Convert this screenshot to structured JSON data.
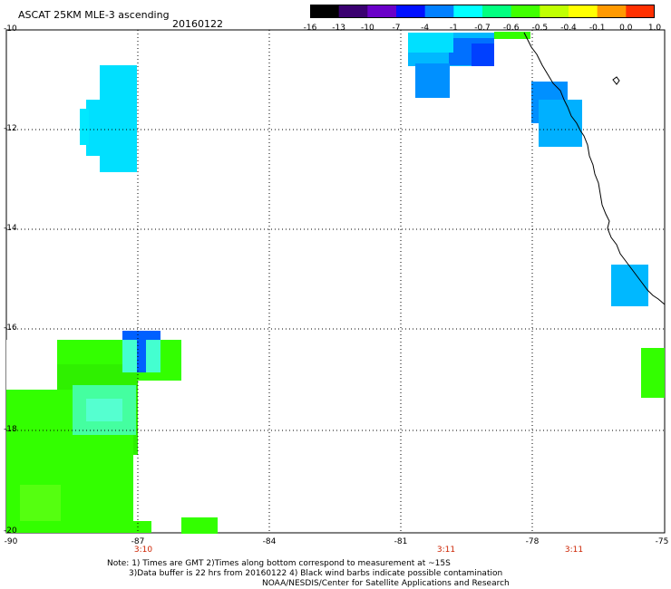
{
  "header": {
    "title": "ASCAT 25KM MLE-3 ascending",
    "date": "20160122"
  },
  "colorbar": {
    "labels": [
      "-16",
      "-13",
      "-10",
      "-7",
      "-4",
      "-1",
      "-0.7",
      "-0.6",
      "-0.5",
      "-0.4",
      "-0.1",
      "0.0",
      "1.0"
    ],
    "colors": [
      "#000000",
      "#3a0070",
      "#6a00c8",
      "#0010ff",
      "#0080ff",
      "#00ffff",
      "#00ff80",
      "#40ff00",
      "#c0ff00",
      "#ffff00",
      "#ff9900",
      "#ff3000"
    ]
  },
  "map": {
    "lat_labels": [
      "-10",
      "-12",
      "-14",
      "-16",
      "-18",
      "-20"
    ],
    "lon_labels": [
      "-90",
      "-87",
      "-84",
      "-81",
      "-78",
      "-75"
    ],
    "time_labels": [
      "3:10",
      "3:11",
      "3:11"
    ],
    "colors": {
      "green": "#33ff00",
      "cyan": "#00e0ff",
      "blue": "#0090ff",
      "deep_blue": "#0040ff",
      "coast": "#000000",
      "grid": "#000000",
      "time_text": "#cc2200"
    }
  },
  "footer": {
    "note_line1": "Note: 1) Times are GMT 2)Times along bottom correspond to measurement at ~15S",
    "note_line2": "3)Data buffer is 22 hrs from 20160122 4) Black wind barbs indicate possible contamination",
    "credit": "NOAA/NESDIS/Center for Satellite Applications and Research"
  }
}
